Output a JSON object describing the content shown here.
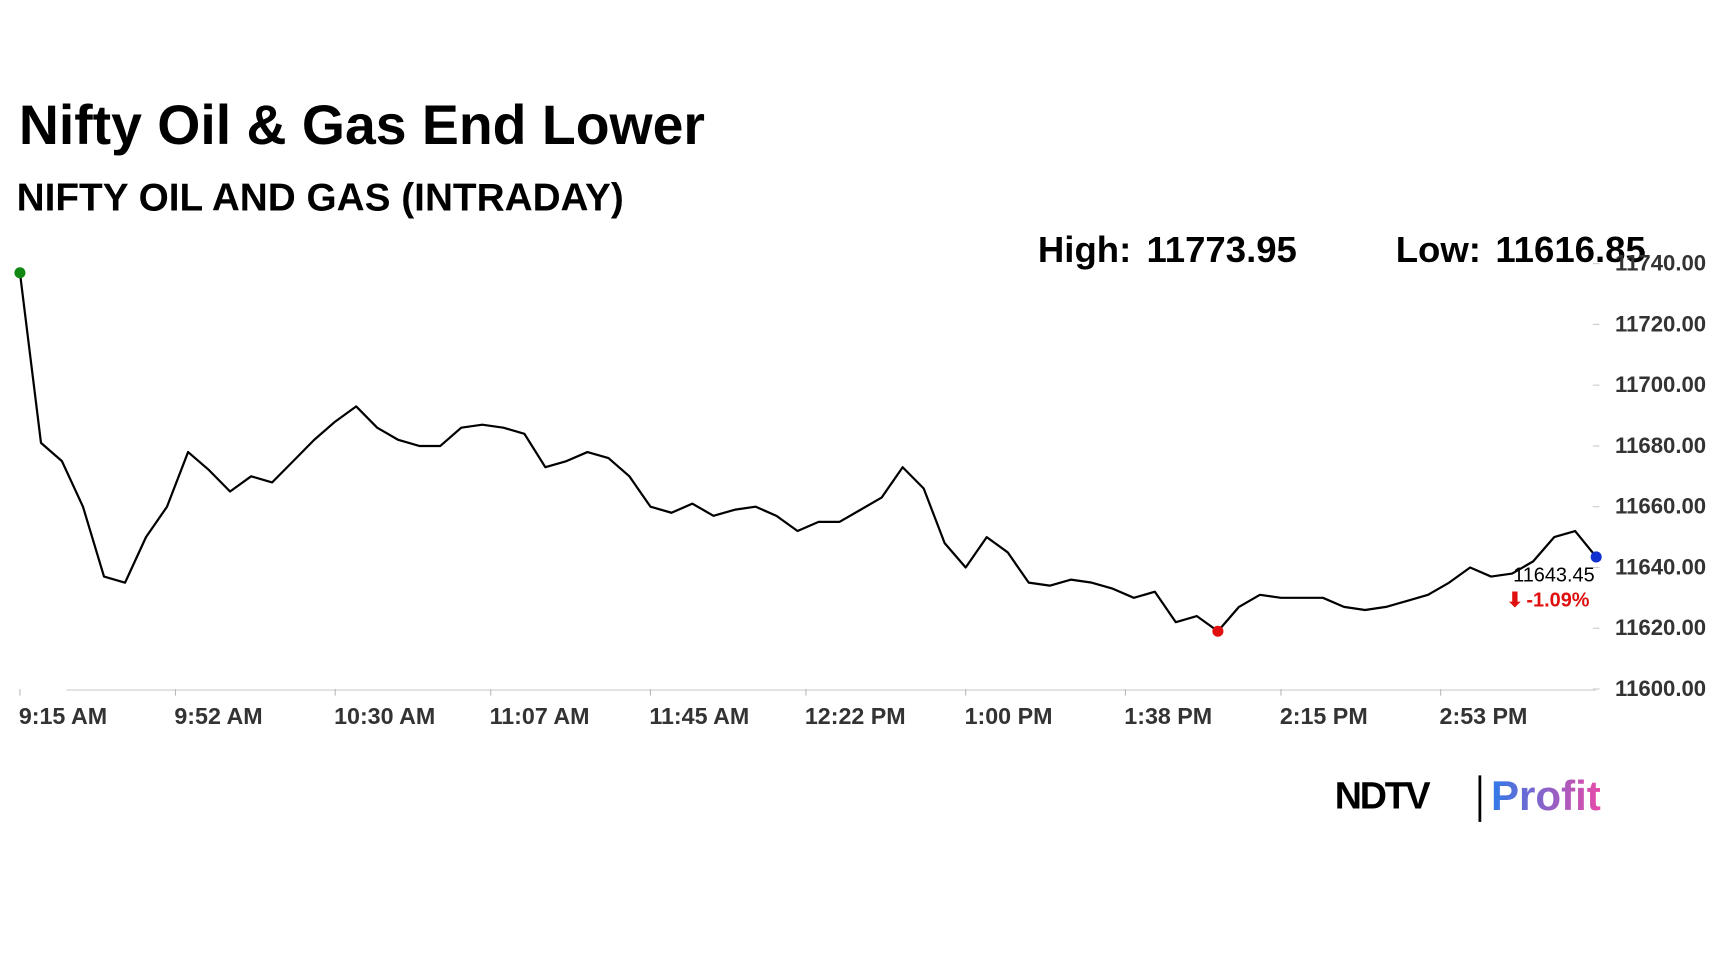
{
  "chart_data": {
    "type": "line",
    "title": "Nifty Oil & Gas End Lower",
    "subtitle": "NIFTY OIL AND GAS (INTRADAY)",
    "high_label": "High:",
    "high": 11773.95,
    "low_label": "Low:",
    "low": 11616.85,
    "close": 11643.45,
    "change": "-1.09%",
    "brand": [
      "NDTV",
      "Profit"
    ],
    "color": "#000000",
    "x": [
      "9:15 AM",
      "9:20 AM",
      "9:25 AM",
      "9:30 AM",
      "9:35 AM",
      "9:40 AM",
      "9:45 AM",
      "9:50 AM",
      "9:55 AM",
      "10:00 AM",
      "10:05 AM",
      "10:10 AM",
      "10:15 AM",
      "10:20 AM",
      "10:25 AM",
      "10:30 AM",
      "10:35 AM",
      "10:40 AM",
      "10:45 AM",
      "10:50 AM",
      "10:55 AM",
      "11:00 AM",
      "11:05 AM",
      "11:10 AM",
      "11:15 AM",
      "11:20 AM",
      "11:25 AM",
      "11:30 AM",
      "11:35 AM",
      "11:40 AM",
      "11:45 AM",
      "11:50 AM",
      "11:55 AM",
      "12:00 PM",
      "12:05 PM",
      "12:10 PM",
      "12:15 PM",
      "12:20 PM",
      "12:25 PM",
      "12:30 PM",
      "12:35 PM",
      "12:40 PM",
      "12:45 PM",
      "12:50 PM",
      "12:55 PM",
      "1:00 PM",
      "1:05 PM",
      "1:10 PM",
      "1:15 PM",
      "1:20 PM",
      "1:25 PM",
      "1:30 PM",
      "1:35 PM",
      "1:40 PM",
      "1:45 PM",
      "1:50 PM",
      "1:55 PM",
      "2:00 PM",
      "2:05 PM",
      "2:10 PM",
      "2:15 PM",
      "2:20 PM",
      "2:25 PM",
      "2:30 PM",
      "2:35 PM",
      "2:40 PM",
      "2:45 PM",
      "2:50 PM",
      "2:55 PM",
      "3:00 PM",
      "3:05 PM",
      "3:10 PM",
      "3:15 PM",
      "3:20 PM",
      "3:25 PM",
      "3:30 PM"
    ],
    "values": [
      11737,
      11681,
      11675,
      11660,
      11637,
      11635,
      11650,
      11660,
      11678,
      11672,
      11665,
      11670,
      11668,
      11675,
      11682,
      11688,
      11693,
      11686,
      11682,
      11680,
      11680,
      11686,
      11687,
      11686,
      11684,
      11673,
      11675,
      11678,
      11676,
      11670,
      11660,
      11658,
      11661,
      11657,
      11659,
      11660,
      11657,
      11652,
      11655,
      11655,
      11659,
      11663,
      11673,
      11666,
      11648,
      11640,
      11650,
      11645,
      11635,
      11634,
      11636,
      11635,
      11633,
      11630,
      11632,
      11622,
      11624,
      11619,
      11627,
      11631,
      11630,
      11630,
      11630,
      11627,
      11626,
      11627,
      11629,
      11631,
      11635,
      11640,
      11637,
      11638,
      11642,
      11650,
      11652,
      11643.45
    ],
    "xlim": [
      "9:15 AM",
      "3:30 PM"
    ],
    "xticks": [
      "9:15 AM",
      "9:52 AM",
      "10:30 AM",
      "11:07 AM",
      "11:45 AM",
      "12:22 PM",
      "1:00 PM",
      "1:38 PM",
      "2:15 PM",
      "2:53 PM"
    ],
    "ylim": [
      11600,
      11740
    ],
    "yticks": [
      {
        "value": 11600,
        "label": "11600.00"
      },
      {
        "value": 11620,
        "label": "11620.00"
      },
      {
        "value": 11640,
        "label": "11640.00"
      },
      {
        "value": 11660,
        "label": "11660.00"
      },
      {
        "value": 11680,
        "label": "11680.00"
      },
      {
        "value": 11700,
        "label": "11700.00"
      },
      {
        "value": 11720,
        "label": "11720.00"
      },
      {
        "value": 11740,
        "label": "11740.00"
      }
    ]
  }
}
